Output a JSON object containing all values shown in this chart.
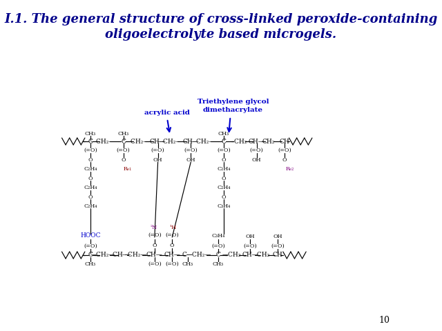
{
  "title_line1": "I.1. The general structure of cross-linked peroxide-containing",
  "title_line2": "oligoelectrolyte based microgels.",
  "title_color": "#00008B",
  "title_fontsize": 13,
  "bg_color": "#ffffff",
  "page_number": "10",
  "label_acrylic_acid": "acrylic acid",
  "label_triethylene1": "Triethylene glycol",
  "label_triethylene2": "dimethacrylate",
  "blue": "#0000CD",
  "red": "#8B0000",
  "purple": "#800080",
  "black": "#000000"
}
